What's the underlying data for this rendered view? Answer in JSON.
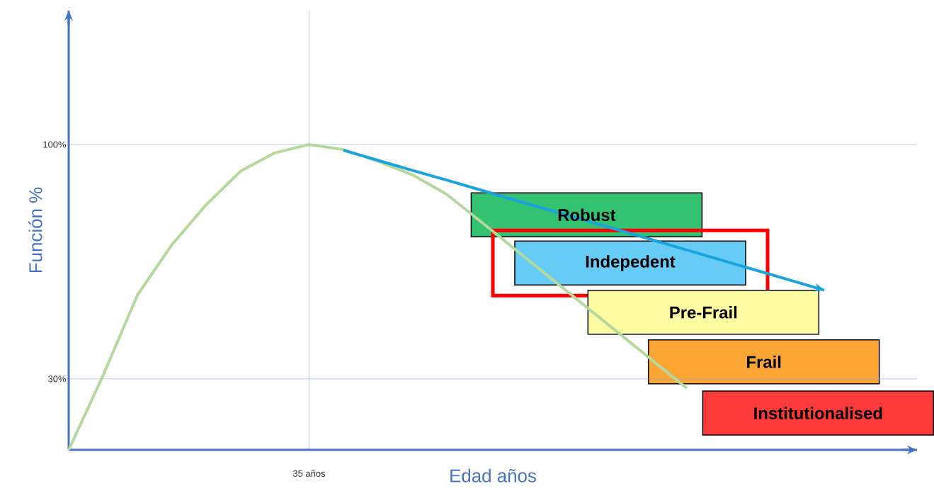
{
  "chart_data": {
    "type": "line",
    "xlabel": "Edad años",
    "ylabel": "Función %",
    "categories": [
      null,
      null,
      null,
      null,
      null,
      null,
      null,
      "35 años",
      null,
      null,
      null,
      null,
      null,
      null,
      null,
      null,
      null,
      null,
      null,
      null,
      null,
      null,
      null
    ],
    "ylim": [
      8.8,
      140
    ],
    "yticks": [
      {
        "value": 100,
        "label": "100%"
      },
      {
        "value": 30,
        "label": "30%"
      }
    ],
    "grid": true,
    "marker": "none",
    "line_style": "solid",
    "series": [
      {
        "color": "#b5d99c",
        "values": [
          8.8,
          31,
          55,
          70,
          82,
          92,
          97.5,
          100,
          98.5,
          95,
          91,
          85.2,
          77,
          68.7,
          60.4,
          52.1,
          43.8,
          35.5,
          27.2,
          null,
          null,
          null,
          null
        ]
      },
      {
        "color": "#1aa3dc",
        "values": [
          null,
          null,
          null,
          null,
          null,
          null,
          null,
          null,
          98.3,
          95.3,
          92.3,
          89.4,
          86.4,
          83.4,
          80.4,
          77.5,
          74.5,
          71.5,
          68.5,
          65.5,
          62.5,
          59.5,
          56.5
        ]
      }
    ],
    "annotations": [
      "Robust",
      "Indepedent",
      "Pre-Frail",
      "Frail",
      "Institutionalised"
    ]
  }
}
